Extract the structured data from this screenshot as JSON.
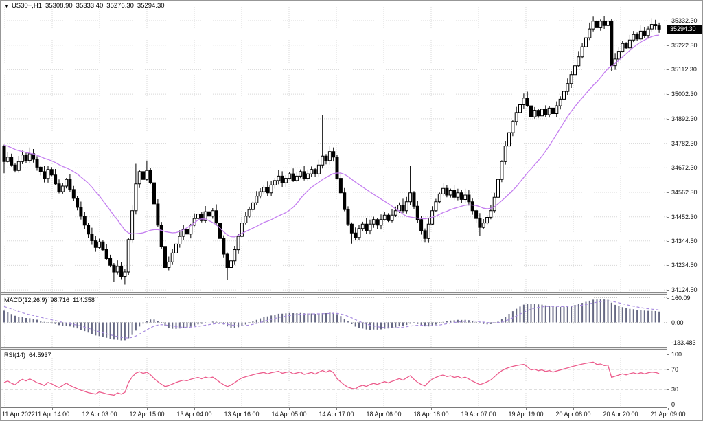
{
  "header": {
    "dropdown_icon": "▼",
    "symbol": "US30+,H1",
    "open": "35308.90",
    "high": "35333.40",
    "low": "35276.30",
    "close": "35294.30"
  },
  "price_axis": {
    "current_label": "35294.30",
    "tick_labels": [
      "35332.30",
      "35222.30",
      "35112.30",
      "35002.30",
      "34892.30",
      "34782.30",
      "34672.30",
      "34562.30",
      "34452.30",
      "34344.50",
      "34234.50",
      "34124.50"
    ]
  },
  "macd_panel": {
    "name": "MACD(12,26,9)",
    "value": "98.716",
    "signal_value": "114.358",
    "axis_labels": [
      "160.09",
      "0.00",
      "-133.483"
    ]
  },
  "rsi_panel": {
    "name": "RSI(14)",
    "value": "64.5937",
    "axis_labels": [
      "100",
      "70",
      "30",
      "0"
    ]
  },
  "time_axis": {
    "labels": [
      "11 Apr 2022",
      "11 Apr 14:00",
      "12 Apr 03:00",
      "12 Apr 15:00",
      "13 Apr 04:00",
      "13 Apr 16:00",
      "14 Apr 05:00",
      "14 Apr 17:00",
      "18 Apr 06:00",
      "18 Apr 18:00",
      "19 Apr 07:00",
      "19 Apr 19:00",
      "20 Apr 08:00",
      "20 Apr 20:00",
      "21 Apr 09:00"
    ]
  },
  "colors": {
    "background": "#ffffff",
    "grid": "#d8d8d8",
    "level_line": "#c9c9c9",
    "candle_outline": "#000000",
    "bull_fill": "#ffffff",
    "bear_fill": "#000000",
    "ma_line": "#c47ef0",
    "macd_bars": "#676a84",
    "macd_signal": "#a88ce0",
    "rsi_line": "#ec5c8c",
    "axis_text": "#111111",
    "badge_bg": "#000000",
    "badge_text": "#ffffff"
  },
  "chart_data": {
    "type": "candlestick",
    "symbol": "US30+",
    "timeframe": "H1",
    "current_bar": {
      "open": 35308.9,
      "high": 35333.4,
      "low": 35276.3,
      "close": 35294.3
    },
    "current_price": 35294.3,
    "price_ticks": [
      35332.3,
      35222.3,
      35112.3,
      35002.3,
      34892.3,
      34782.3,
      34672.3,
      34562.3,
      34452.3,
      34344.5,
      34234.5,
      34124.5
    ],
    "ylim": [
      34110,
      35390
    ],
    "x_labels": [
      "11 Apr 2022",
      "11 Apr 14:00",
      "12 Apr 03:00",
      "12 Apr 15:00",
      "13 Apr 04:00",
      "13 Apr 16:00",
      "14 Apr 05:00",
      "14 Apr 17:00",
      "18 Apr 06:00",
      "18 Apr 18:00",
      "19 Apr 07:00",
      "19 Apr 19:00",
      "20 Apr 08:00",
      "20 Apr 20:00",
      "21 Apr 09:00"
    ],
    "open0": 34770,
    "closes": [
      34700,
      34720,
      34685,
      34660,
      34700,
      34730,
      34705,
      34735,
      34710,
      34675,
      34655,
      34625,
      34665,
      34640,
      34600,
      34565,
      34590,
      34620,
      34575,
      34535,
      34495,
      34455,
      34415,
      34375,
      34345,
      34315,
      34340,
      34305,
      34265,
      34235,
      34205,
      34230,
      34185,
      34205,
      34350,
      34480,
      34600,
      34655,
      34620,
      34660,
      34605,
      34510,
      34415,
      34320,
      34225,
      34250,
      34290,
      34330,
      34365,
      34395,
      34375,
      34415,
      34445,
      34465,
      34435,
      34475,
      34455,
      34480,
      34425,
      34355,
      34285,
      34225,
      34255,
      34305,
      34365,
      34425,
      34455,
      34485,
      34515,
      34545,
      34565,
      34585,
      34560,
      34595,
      34615,
      34635,
      34605,
      34625,
      34645,
      34615,
      34635,
      34655,
      34625,
      34645,
      34665,
      34645,
      34685,
      34725,
      34705,
      34745,
      34720,
      34625,
      34560,
      34485,
      34420,
      34380,
      34360,
      34400,
      34420,
      34390,
      34420,
      34440,
      34415,
      34440,
      34460,
      34435,
      34460,
      34480,
      34505,
      34480,
      34520,
      34560,
      34500,
      34440,
      34390,
      34355,
      34420,
      34480,
      34520,
      34555,
      34580,
      34550,
      34570,
      34540,
      34560,
      34530,
      34550,
      34520,
      34480,
      34445,
      34405,
      34425,
      34450,
      34480,
      34540,
      34620,
      34700,
      34770,
      34830,
      34880,
      34920,
      34955,
      34985,
      34950,
      34900,
      34930,
      34905,
      34935,
      34910,
      34940,
      34915,
      34950,
      34980,
      35015,
      35050,
      35090,
      35130,
      35170,
      35215,
      35255,
      35295,
      35330,
      35300,
      35330,
      35310,
      35330,
      35130,
      35160,
      35195,
      35230,
      35210,
      35245,
      35270,
      35250,
      35285,
      35265,
      35295,
      35315,
      35309,
      35294.3
    ],
    "spike_highs": {
      "36": 34690,
      "39": 34705,
      "87": 34910,
      "111": 34680,
      "142": 35005,
      "161": 35350,
      "164": 35352
    },
    "spike_lows": {
      "0": 34648,
      "30": 34160,
      "33": 34148,
      "44": 34145,
      "61": 34168,
      "95": 34332,
      "130": 34368,
      "166": 35105
    },
    "overlays": {
      "ma_period": 20
    },
    "indicators": {
      "macd": {
        "fast": 12,
        "slow": 26,
        "signal": 9,
        "last_value": 98.716,
        "last_signal": 114.358,
        "ticks": [
          160.09,
          0,
          -133.483
        ]
      },
      "rsi": {
        "period": 14,
        "last_value": 64.5937,
        "levels": [
          70,
          30
        ],
        "ticks": [
          100,
          70,
          30,
          0
        ]
      }
    }
  }
}
